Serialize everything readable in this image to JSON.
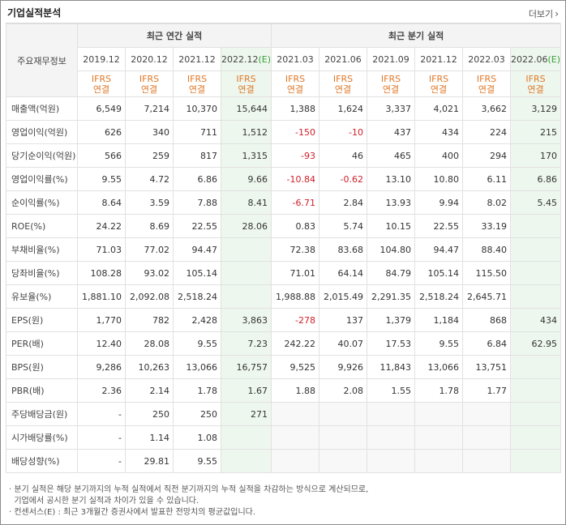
{
  "title": "기업실적분석",
  "more_label": "더보기",
  "corner_label": "주요재무정보",
  "groups": {
    "annual": "최근 연간 실적",
    "quarterly": "최근 분기 실적"
  },
  "periods": [
    "2019.12",
    "2020.12",
    "2021.12",
    "2022.12",
    "2021.03",
    "2021.06",
    "2021.09",
    "2021.12",
    "2022.03",
    "2022.06"
  ],
  "estimate_mark": "(E)",
  "ifrs_lines": [
    "IFRS",
    "연결"
  ],
  "rows": [
    {
      "label": "매출액(억원)",
      "values": [
        "6,549",
        "7,214",
        "10,370",
        "15,644",
        "1,388",
        "1,624",
        "3,337",
        "4,021",
        "3,662",
        "3,129"
      ]
    },
    {
      "label": "영업이익(억원)",
      "values": [
        "626",
        "340",
        "711",
        "1,512",
        "-150",
        "-10",
        "437",
        "434",
        "224",
        "215"
      ]
    },
    {
      "label": "당기순이익(억원)",
      "values": [
        "566",
        "259",
        "817",
        "1,315",
        "-93",
        "46",
        "465",
        "400",
        "294",
        "170"
      ]
    },
    {
      "label": "영업이익률(%)",
      "values": [
        "9.55",
        "4.72",
        "6.86",
        "9.66",
        "-10.84",
        "-0.62",
        "13.10",
        "10.80",
        "6.11",
        "6.86"
      ]
    },
    {
      "label": "순이익률(%)",
      "values": [
        "8.64",
        "3.59",
        "7.88",
        "8.41",
        "-6.71",
        "2.84",
        "13.93",
        "9.94",
        "8.02",
        "5.45"
      ]
    },
    {
      "label": "ROE(%)",
      "values": [
        "24.22",
        "8.69",
        "22.55",
        "28.06",
        "0.83",
        "5.74",
        "10.15",
        "22.55",
        "33.19",
        ""
      ]
    },
    {
      "label": "부채비율(%)",
      "values": [
        "71.03",
        "77.02",
        "94.47",
        "",
        "72.38",
        "83.68",
        "104.80",
        "94.47",
        "88.40",
        ""
      ]
    },
    {
      "label": "당좌비율(%)",
      "values": [
        "108.28",
        "93.02",
        "105.14",
        "",
        "71.01",
        "64.14",
        "84.79",
        "105.14",
        "115.50",
        ""
      ]
    },
    {
      "label": "유보율(%)",
      "values": [
        "1,881.10",
        "2,092.08",
        "2,518.24",
        "",
        "1,988.88",
        "2,015.49",
        "2,291.35",
        "2,518.24",
        "2,645.71",
        ""
      ]
    },
    {
      "label": "EPS(원)",
      "values": [
        "1,770",
        "782",
        "2,428",
        "3,863",
        "-278",
        "137",
        "1,379",
        "1,184",
        "868",
        "434"
      ]
    },
    {
      "label": "PER(배)",
      "values": [
        "12.40",
        "28.08",
        "9.55",
        "7.23",
        "242.22",
        "40.07",
        "17.53",
        "9.55",
        "6.84",
        "62.95"
      ]
    },
    {
      "label": "BPS(원)",
      "values": [
        "9,286",
        "10,263",
        "13,066",
        "16,757",
        "9,525",
        "9,926",
        "11,843",
        "13,066",
        "13,751",
        ""
      ]
    },
    {
      "label": "PBR(배)",
      "values": [
        "2.36",
        "2.14",
        "1.78",
        "1.67",
        "1.88",
        "2.08",
        "1.55",
        "1.78",
        "1.77",
        ""
      ]
    },
    {
      "label": "주당배당금(원)",
      "values": [
        "-",
        "250",
        "250",
        "271",
        "",
        "",
        "",
        "",
        "",
        ""
      ]
    },
    {
      "label": "시가배당률(%)",
      "values": [
        "-",
        "1.14",
        "1.08",
        "",
        "",
        "",
        "",
        "",
        "",
        ""
      ]
    },
    {
      "label": "배당성향(%)",
      "values": [
        "-",
        "29.81",
        "9.55",
        "",
        "",
        "",
        "",
        "",
        "",
        ""
      ]
    }
  ],
  "footnotes": [
    "· 분기 실적은 해당 분기까지의 누적 실적에서 직전 분기까지의 누적 실적을 차감하는 방식으로 계산되므로,",
    "  기업에서 공시한 분기 실적과 차이가 있을 수 있습니다.",
    "· 컨센서스(E) : 최근 3개월간 증권사에서 발표한 전망치의 평균값입니다."
  ]
}
